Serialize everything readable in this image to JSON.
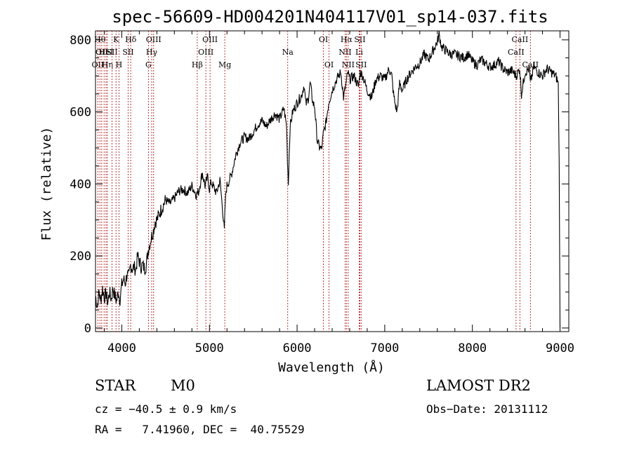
{
  "chart_data": {
    "type": "line",
    "title": "spec-56609-HD004201N404117V01_sp14-037.fits",
    "xlabel": "Wavelength (Å)",
    "ylabel": "Flux (relative)",
    "xlim": [
      3700,
      9100
    ],
    "ylim": [
      -10,
      825
    ],
    "xticks": [
      "4000",
      "5000",
      "6000",
      "7000",
      "8000",
      "9000"
    ],
    "yticks": [
      "0",
      "200",
      "400",
      "600",
      "800"
    ],
    "series": [
      {
        "x": [
          3700,
          3720,
          3740,
          3760,
          3780,
          3800,
          3820,
          3840,
          3860,
          3880,
          3900,
          3920,
          3940,
          3960,
          3980,
          4000,
          4020,
          4040,
          4060,
          4080,
          4100,
          4120,
          4140,
          4160,
          4180,
          4200,
          4220,
          4240,
          4260,
          4280,
          4300,
          4320,
          4340,
          4360,
          4380,
          4400,
          4450,
          4500,
          4550,
          4600,
          4650,
          4700,
          4750,
          4800,
          4850,
          4880,
          4900,
          4920,
          4950,
          4980,
          5000,
          5020,
          5050,
          5080,
          5120,
          5150,
          5170,
          5180,
          5190,
          5200,
          5250,
          5300,
          5350,
          5400,
          5450,
          5500,
          5550,
          5600,
          5650,
          5700,
          5750,
          5800,
          5850,
          5880,
          5890,
          5900,
          5920,
          5950,
          6000,
          6050,
          6080,
          6100,
          6130,
          6150,
          6180,
          6200,
          6230,
          6250,
          6280,
          6300,
          6330,
          6360,
          6400,
          6450,
          6500,
          6530,
          6560,
          6580,
          6600,
          6650,
          6700,
          6720,
          6750,
          6800,
          6850,
          6900,
          6950,
          7000,
          7050,
          7080,
          7100,
          7120,
          7140,
          7170,
          7200,
          7250,
          7300,
          7350,
          7400,
          7450,
          7500,
          7550,
          7580,
          7600,
          7620,
          7650,
          7700,
          7750,
          7800,
          7850,
          7900,
          7950,
          8000,
          8050,
          8100,
          8150,
          8200,
          8250,
          8300,
          8350,
          8400,
          8450,
          8500,
          8540,
          8560,
          8600,
          8650,
          8660,
          8680,
          8700,
          8750,
          8800,
          8850,
          8900,
          8950,
          8980,
          8990,
          9000
        ],
        "y": [
          90,
          60,
          100,
          75,
          110,
          85,
          95,
          70,
          100,
          80,
          110,
          90,
          75,
          100,
          80,
          120,
          135,
          125,
          150,
          140,
          175,
          165,
          170,
          160,
          200,
          185,
          170,
          175,
          165,
          175,
          215,
          235,
          255,
          270,
          295,
          300,
          330,
          355,
          345,
          360,
          380,
          385,
          375,
          395,
          370,
          380,
          410,
          430,
          395,
          420,
          385,
          405,
          390,
          375,
          410,
          330,
          270,
          345,
          380,
          395,
          425,
          480,
          515,
          530,
          525,
          545,
          565,
          575,
          560,
          580,
          595,
          580,
          610,
          560,
          470,
          400,
          560,
          600,
          625,
          645,
          675,
          620,
          640,
          680,
          625,
          615,
          520,
          505,
          495,
          540,
          570,
          625,
          660,
          690,
          710,
          640,
          680,
          710,
          690,
          700,
          670,
          710,
          700,
          660,
          640,
          690,
          700,
          690,
          720,
          700,
          650,
          620,
          600,
          680,
          660,
          690,
          710,
          725,
          735,
          760,
          745,
          770,
          785,
          795,
          815,
          780,
          770,
          760,
          760,
          755,
          750,
          760,
          740,
          730,
          745,
          735,
          725,
          730,
          740,
          720,
          710,
          715,
          700,
          720,
          650,
          710,
          720,
          680,
          700,
          725,
          710,
          700,
          720,
          710,
          700,
          680,
          460,
          0
        ]
      }
    ],
    "lines": [
      {
        "x": 3727,
        "labels": [
          {
            "t": "OII",
            "row": 2
          }
        ]
      },
      {
        "x": 3750,
        "labels": [
          {
            "t": "Hθ",
            "row": 0
          }
        ]
      },
      {
        "x": 3771,
        "labels": [
          {
            "t": "OII",
            "row": 1
          }
        ]
      },
      {
        "x": 3798,
        "labels": []
      },
      {
        "x": 3820,
        "labels": [
          {
            "t": "HeI",
            "row": 1
          }
        ]
      },
      {
        "x": 3835,
        "labels": [
          {
            "t": "Hη",
            "row": 2
          }
        ]
      },
      {
        "x": 3889,
        "labels": [
          {
            "t": "SII",
            "row": 1
          }
        ]
      },
      {
        "x": 3934,
        "labels": [
          {
            "t": "K",
            "row": 0
          }
        ]
      },
      {
        "x": 3968,
        "labels": [
          {
            "t": "H",
            "row": 2
          }
        ]
      },
      {
        "x": 4072,
        "labels": [
          {
            "t": "SII",
            "row": 1
          }
        ]
      },
      {
        "x": 4102,
        "labels": [
          {
            "t": "Hδ",
            "row": 0
          }
        ]
      },
      {
        "x": 4304,
        "labels": [
          {
            "t": "G",
            "row": 2
          }
        ]
      },
      {
        "x": 4341,
        "labels": [
          {
            "t": "Hγ",
            "row": 1
          }
        ]
      },
      {
        "x": 4363,
        "labels": [
          {
            "t": "OIII",
            "row": 0
          }
        ]
      },
      {
        "x": 4861,
        "labels": [
          {
            "t": "Hβ",
            "row": 2
          }
        ]
      },
      {
        "x": 4959,
        "labels": [
          {
            "t": "OIII",
            "row": 1
          }
        ]
      },
      {
        "x": 5007,
        "labels": [
          {
            "t": "OIII",
            "row": 0
          }
        ]
      },
      {
        "x": 5175,
        "labels": [
          {
            "t": "Mg",
            "row": 2
          }
        ]
      },
      {
        "x": 5893,
        "labels": [
          {
            "t": "Na",
            "row": 1
          }
        ]
      },
      {
        "x": 6300,
        "labels": [
          {
            "t": "OI",
            "row": 0
          }
        ]
      },
      {
        "x": 6364,
        "labels": [
          {
            "t": "OI",
            "row": 2
          }
        ]
      },
      {
        "x": 6548,
        "labels": [
          {
            "t": "NII",
            "row": 1
          }
        ]
      },
      {
        "x": 6563,
        "labels": [
          {
            "t": "Hα",
            "row": 0
          }
        ]
      },
      {
        "x": 6583,
        "labels": [
          {
            "t": "NII",
            "row": 2
          }
        ]
      },
      {
        "x": 6708,
        "labels": [
          {
            "t": "Li",
            "row": 1
          }
        ]
      },
      {
        "x": 6716,
        "labels": [
          {
            "t": "SII",
            "row": 0
          }
        ]
      },
      {
        "x": 6731,
        "labels": [
          {
            "t": "SII",
            "row": 2
          }
        ]
      },
      {
        "x": 8498,
        "labels": [
          {
            "t": "CaII",
            "row": 1
          }
        ]
      },
      {
        "x": 8542,
        "labels": [
          {
            "t": "CaII",
            "row": 0
          }
        ]
      },
      {
        "x": 8662,
        "labels": [
          {
            "t": "CaII",
            "row": 2
          }
        ]
      }
    ],
    "grid": false,
    "legend": "none"
  },
  "info": {
    "object_class": "STAR",
    "subclass": "M0",
    "survey": "LAMOST DR2",
    "cz": "cz = −40.5 ± 0.9 km/s",
    "obs_date": "Obs−Date: 20131112",
    "radec": "RA =   7.41960, DEC =  40.75529"
  },
  "colors": {
    "line": "#000000",
    "marker_lines": "#b22222",
    "background": "#ffffff"
  }
}
